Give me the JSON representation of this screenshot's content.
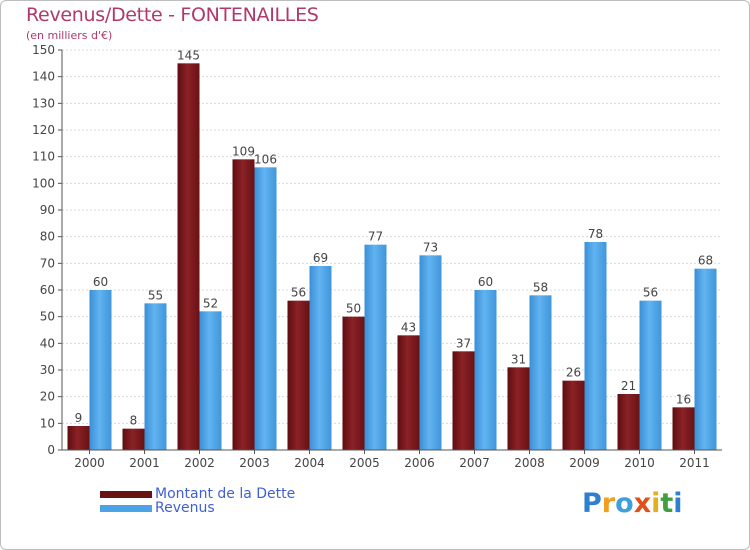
{
  "chart_data": {
    "type": "bar",
    "title": "Revenus/Dette - FONTENAILLES",
    "subtitle": "(en milliers d'€)",
    "categories": [
      "2000",
      "2001",
      "2002",
      "2003",
      "2004",
      "2005",
      "2006",
      "2007",
      "2008",
      "2009",
      "2010",
      "2011"
    ],
    "series": [
      {
        "name": "Montant de la Dette",
        "color": "#7a1518",
        "values": [
          9,
          8,
          145,
          109,
          56,
          50,
          43,
          37,
          31,
          26,
          21,
          16
        ]
      },
      {
        "name": "Revenus",
        "color": "#4aa3e6",
        "values": [
          60,
          55,
          52,
          106,
          69,
          77,
          73,
          60,
          58,
          78,
          56,
          68
        ]
      }
    ],
    "ylim": [
      0,
      150
    ],
    "yticks": [
      0,
      10,
      20,
      30,
      40,
      50,
      60,
      70,
      80,
      90,
      100,
      110,
      120,
      130,
      140,
      150
    ],
    "grid": true,
    "legend_position": "bottom-left"
  },
  "logo": {
    "letters": [
      "P",
      "r",
      "o",
      "x",
      "i",
      "t",
      "i"
    ]
  }
}
